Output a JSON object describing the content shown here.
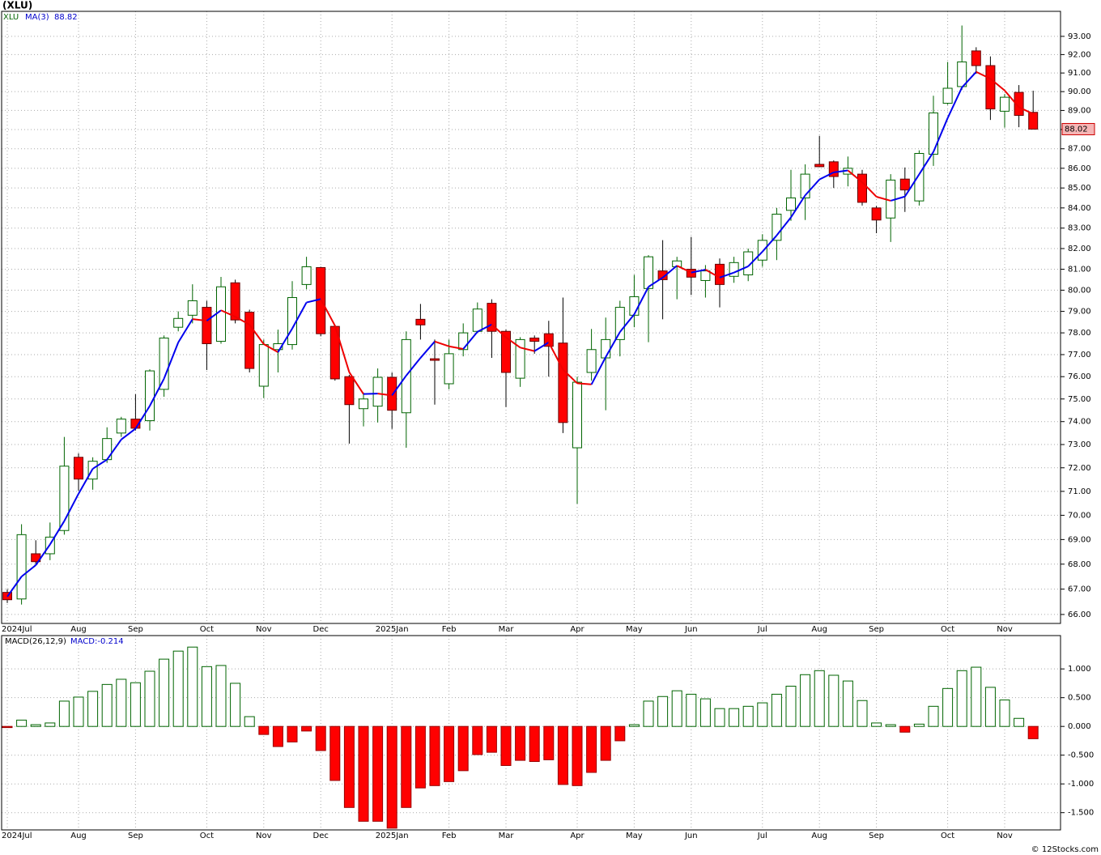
{
  "source": "© 12Stocks.com",
  "chart_data": [
    {
      "type": "candlestick",
      "title": "(XLU)",
      "symbol": "XLU",
      "log_scale": true,
      "grid": true,
      "categories": [
        "2024Jul",
        null,
        null,
        null,
        null,
        "Aug",
        null,
        null,
        null,
        "Sep",
        null,
        null,
        null,
        null,
        "Oct",
        null,
        null,
        null,
        "Nov",
        null,
        null,
        null,
        "Dec",
        null,
        null,
        null,
        null,
        "2025Jan",
        null,
        null,
        null,
        "Feb",
        null,
        null,
        null,
        "Mar",
        null,
        null,
        null,
        null,
        "Apr",
        null,
        null,
        null,
        "May",
        null,
        null,
        null,
        "Jun",
        null,
        null,
        null,
        null,
        "Jul",
        null,
        null,
        null,
        "Aug",
        null,
        null,
        null,
        "Sep",
        null,
        null,
        null,
        null,
        "Oct",
        null,
        null,
        null,
        "Nov",
        null,
        null
      ],
      "open": [
        66.87,
        66.61,
        68.42,
        68.42,
        69.37,
        72.45,
        71.52,
        72.35,
        73.5,
        74.11,
        74.04,
        75.43,
        78.26,
        78.82,
        79.19,
        77.61,
        80.35,
        78.96,
        75.57,
        77.23,
        77.46,
        80.27,
        81.08,
        78.3,
        76.0,
        74.57,
        74.68,
        75.97,
        74.39,
        78.63,
        76.81,
        75.68,
        77.23,
        78.07,
        79.38,
        78.07,
        75.93,
        77.76,
        77.96,
        77.53,
        72.86,
        76.19,
        76.85,
        77.69,
        78.82,
        80.08,
        80.92,
        81.12,
        81.0,
        80.46,
        81.24,
        80.66,
        80.73,
        81.44,
        82.4,
        83.88,
        84.5,
        86.2,
        86.33,
        85.7,
        85.7,
        84.0,
        83.5,
        85.45,
        84.35,
        86.72,
        89.38,
        90.27,
        92.2,
        91.4,
        88.96,
        89.96,
        88.9
      ],
      "high": [
        67.0,
        69.63,
        68.97,
        69.7,
        73.33,
        72.62,
        72.45,
        73.75,
        74.21,
        75.21,
        76.33,
        77.88,
        79.0,
        80.28,
        79.5,
        80.63,
        80.5,
        79.08,
        77.69,
        78.15,
        80.43,
        81.6,
        81.12,
        78.37,
        76.08,
        75.29,
        76.37,
        76.19,
        78.07,
        79.35,
        77.69,
        77.69,
        78.44,
        79.42,
        79.57,
        78.15,
        77.8,
        77.88,
        78.56,
        79.65,
        76.0,
        78.18,
        78.71,
        79.5,
        80.73,
        81.68,
        82.41,
        81.6,
        82.57,
        81.2,
        81.52,
        81.6,
        82.0,
        82.7,
        84.0,
        85.92,
        86.2,
        87.67,
        86.4,
        86.6,
        85.92,
        84.1,
        85.7,
        86.04,
        86.92,
        89.78,
        91.6,
        93.6,
        92.4,
        91.9,
        89.87,
        90.35,
        90.05
      ],
      "low": [
        66.45,
        66.39,
        68.0,
        68.16,
        69.2,
        71.03,
        71.07,
        72.21,
        73.33,
        73.61,
        73.61,
        75.1,
        78.07,
        78.44,
        76.3,
        77.5,
        78.44,
        76.19,
        75.04,
        76.19,
        77.23,
        80.04,
        77.84,
        75.82,
        73.04,
        73.79,
        73.96,
        73.68,
        72.86,
        77.69,
        74.75,
        75.43,
        76.92,
        78.0,
        76.85,
        74.64,
        75.54,
        77.04,
        76.0,
        73.5,
        70.48,
        75.82,
        74.5,
        76.92,
        78.26,
        77.57,
        78.63,
        79.57,
        79.77,
        79.65,
        79.19,
        80.35,
        80.43,
        81.12,
        81.44,
        83.36,
        83.4,
        86.08,
        85.0,
        85.08,
        84.12,
        82.75,
        82.32,
        83.8,
        84.12,
        86.12,
        89.3,
        90.1,
        90.96,
        88.5,
        88.1,
        88.12,
        88.0
      ],
      "close": [
        66.58,
        69.2,
        68.1,
        69.1,
        72.07,
        71.52,
        72.28,
        73.26,
        74.11,
        73.71,
        76.26,
        77.76,
        78.67,
        79.5,
        77.5,
        80.16,
        78.6,
        76.37,
        77.46,
        77.5,
        79.65,
        81.12,
        77.96,
        75.9,
        74.75,
        75.0,
        75.97,
        74.5,
        77.69,
        78.37,
        76.74,
        77.04,
        78.0,
        79.11,
        78.07,
        76.19,
        77.69,
        77.61,
        77.38,
        73.96,
        75.75,
        77.23,
        77.69,
        79.19,
        79.69,
        81.6,
        80.5,
        81.4,
        80.62,
        80.92,
        80.27,
        81.32,
        81.84,
        82.4,
        83.69,
        84.5,
        85.7,
        86.08,
        85.58,
        86.0,
        84.28,
        83.4,
        85.4,
        84.9,
        86.76,
        88.87,
        90.18,
        91.6,
        91.4,
        89.08,
        89.7,
        88.74,
        88.02
      ],
      "ma": {
        "name": "MA(3)",
        "up_color": "#0000ee",
        "down_color": "#ee0000",
        "values": [
          66.7,
          67.5,
          67.96,
          68.8,
          69.76,
          70.9,
          71.96,
          72.35,
          73.22,
          73.69,
          74.69,
          75.91,
          77.56,
          78.64,
          78.56,
          79.05,
          78.75,
          78.38,
          77.48,
          77.11,
          78.2,
          79.42,
          79.58,
          78.33,
          76.2,
          75.22,
          75.24,
          75.16,
          76.05,
          76.85,
          77.6,
          77.38,
          77.26,
          78.05,
          78.39,
          77.79,
          77.32,
          77.16,
          77.56,
          76.32,
          75.7,
          75.65,
          76.89,
          78.04,
          78.86,
          80.16,
          80.6,
          81.17,
          80.84,
          80.98,
          80.6,
          80.84,
          81.14,
          81.85,
          82.64,
          83.53,
          84.63,
          85.43,
          85.79,
          85.89,
          85.29,
          84.56,
          84.36,
          84.57,
          85.69,
          86.84,
          88.6,
          90.22,
          91.06,
          90.69,
          90.06,
          89.17,
          88.82
        ]
      },
      "up_color": "#006400",
      "down_color": "#ff0000",
      "ylim": [
        65.65,
        94.39
      ],
      "yticks": [
        {
          "value": 66,
          "label": "66.00"
        },
        {
          "value": 67,
          "label": "67.00"
        },
        {
          "value": 68,
          "label": "68.00"
        },
        {
          "value": 69,
          "label": "69.00"
        },
        {
          "value": 70,
          "label": "70.00"
        },
        {
          "value": 71,
          "label": "71.00"
        },
        {
          "value": 72,
          "label": "72.00"
        },
        {
          "value": 73,
          "label": "73.00"
        },
        {
          "value": 74,
          "label": "74.00"
        },
        {
          "value": 75,
          "label": "75.00"
        },
        {
          "value": 76,
          "label": "76.00"
        },
        {
          "value": 77,
          "label": "77.00"
        },
        {
          "value": 78,
          "label": "78.00"
        },
        {
          "value": 79,
          "label": "79.00"
        },
        {
          "value": 80,
          "label": "80.00"
        },
        {
          "value": 81,
          "label": "81.00"
        },
        {
          "value": 82,
          "label": "82.00"
        },
        {
          "value": 83,
          "label": "83.00"
        },
        {
          "value": 84,
          "label": "84.00"
        },
        {
          "value": 85,
          "label": "85.00"
        },
        {
          "value": 86,
          "label": "86.00"
        },
        {
          "value": 87,
          "label": "87.00"
        },
        {
          "value": 88,
          "label": "88.00"
        },
        {
          "value": 89,
          "label": "89.00"
        },
        {
          "value": 90,
          "label": "90.00"
        },
        {
          "value": 91,
          "label": "91.00"
        },
        {
          "value": 92,
          "label": "92.00"
        },
        {
          "value": 93,
          "label": "93.00"
        }
      ]
    },
    {
      "type": "bar",
      "title": "MACD(26,12,9)",
      "label": "MACD:-0.214",
      "grid": true,
      "categories": [
        "2024Jul",
        null,
        null,
        null,
        null,
        "Aug",
        null,
        null,
        null,
        "Sep",
        null,
        null,
        null,
        null,
        "Oct",
        null,
        null,
        null,
        "Nov",
        null,
        null,
        null,
        "Dec",
        null,
        null,
        null,
        null,
        "2025Jan",
        null,
        null,
        null,
        "Feb",
        null,
        null,
        null,
        "Mar",
        null,
        null,
        null,
        null,
        "Apr",
        null,
        null,
        null,
        "May",
        null,
        null,
        null,
        "Jun",
        null,
        null,
        null,
        null,
        "Jul",
        null,
        null,
        null,
        "Aug",
        null,
        null,
        null,
        "Sep",
        null,
        null,
        null,
        null,
        "Oct",
        null,
        null,
        null,
        "Nov",
        null,
        null
      ],
      "values": [
        -0.02,
        0.11,
        0.03,
        0.06,
        0.44,
        0.51,
        0.61,
        0.73,
        0.82,
        0.76,
        0.96,
        1.17,
        1.31,
        1.38,
        1.04,
        1.06,
        0.75,
        0.17,
        -0.14,
        -0.35,
        -0.27,
        -0.08,
        -0.42,
        -0.94,
        -1.41,
        -1.65,
        -1.65,
        -1.77,
        -1.41,
        -1.07,
        -1.03,
        -0.96,
        -0.77,
        -0.49,
        -0.45,
        -0.68,
        -0.59,
        -0.61,
        -0.58,
        -1.01,
        -1.03,
        -0.8,
        -0.59,
        -0.25,
        0.03,
        0.44,
        0.52,
        0.62,
        0.56,
        0.48,
        0.31,
        0.31,
        0.35,
        0.41,
        0.56,
        0.7,
        0.9,
        0.97,
        0.89,
        0.79,
        0.45,
        0.06,
        0.03,
        -0.1,
        0.04,
        0.35,
        0.66,
        0.97,
        1.03,
        0.68,
        0.46,
        0.14,
        -0.214
      ],
      "pos_color": "#006400",
      "neg_color": "#ff0000",
      "ylim": [
        -1.8,
        1.58
      ],
      "yticks": [
        {
          "value": -1.5,
          "label": "-1.500"
        },
        {
          "value": -1,
          "label": "-1.000"
        },
        {
          "value": -0.5,
          "label": "-0.500"
        },
        {
          "value": 0,
          "label": "0.000"
        },
        {
          "value": 0.5,
          "label": "0.500"
        },
        {
          "value": 1,
          "label": "1.000"
        }
      ]
    }
  ]
}
